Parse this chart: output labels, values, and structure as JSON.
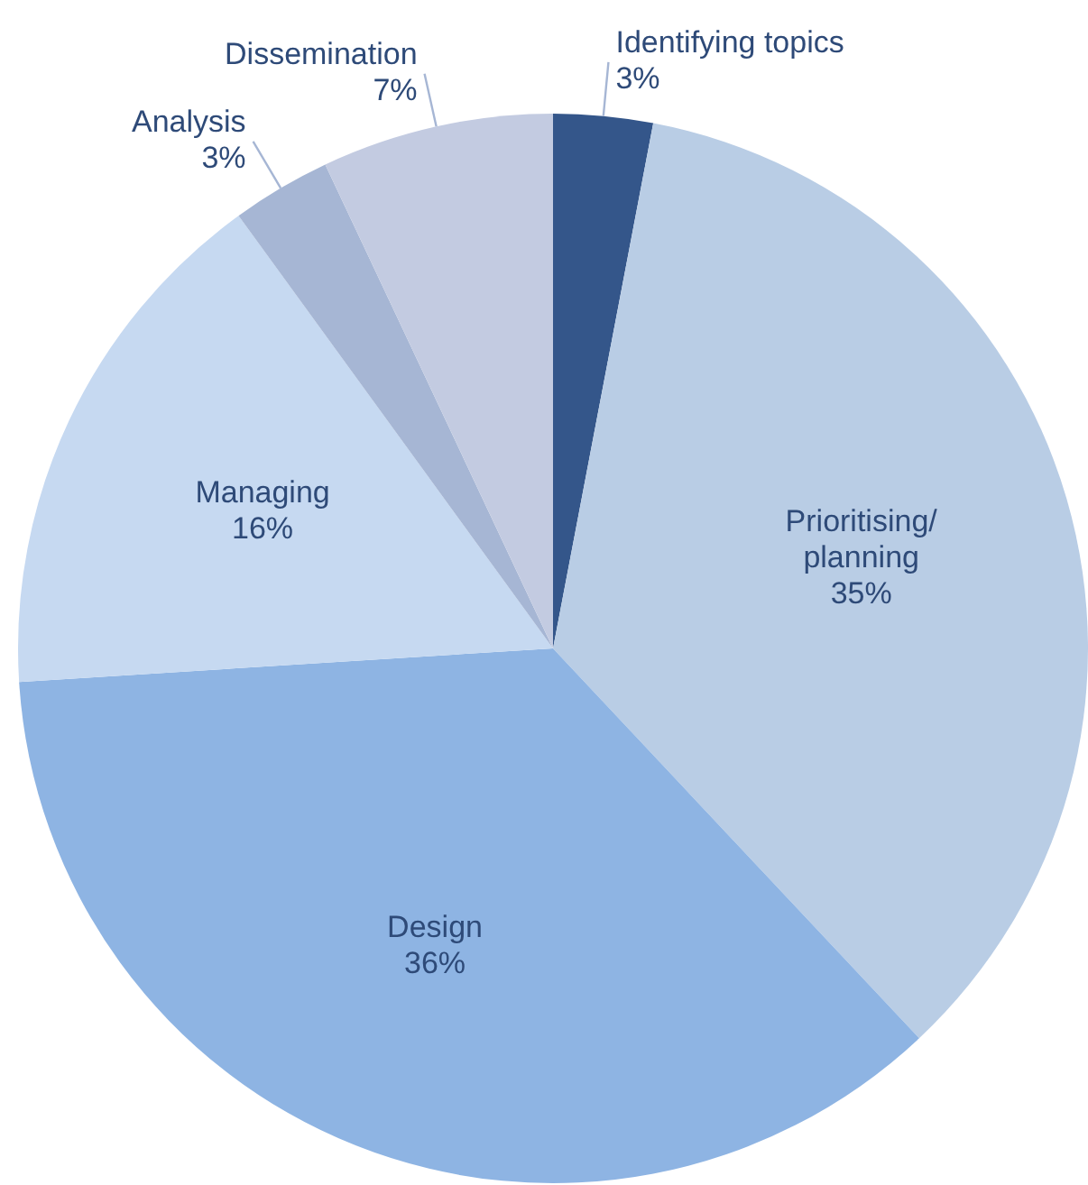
{
  "chart_data": {
    "type": "pie",
    "categories": [
      "Identifying topics",
      "Prioritising/ planning",
      "Design",
      "Managing",
      "Analysis",
      "Dissemination"
    ],
    "values": [
      3,
      35,
      36,
      16,
      3,
      7
    ],
    "value_labels": [
      "3%",
      "35%",
      "36%",
      "16%",
      "3%",
      "7%"
    ],
    "colors": [
      "#34568a",
      "#b9cde5",
      "#8eb4e3",
      "#c6d9f1",
      "#a6b6d4",
      "#c3cbe1"
    ],
    "legend": false
  }
}
